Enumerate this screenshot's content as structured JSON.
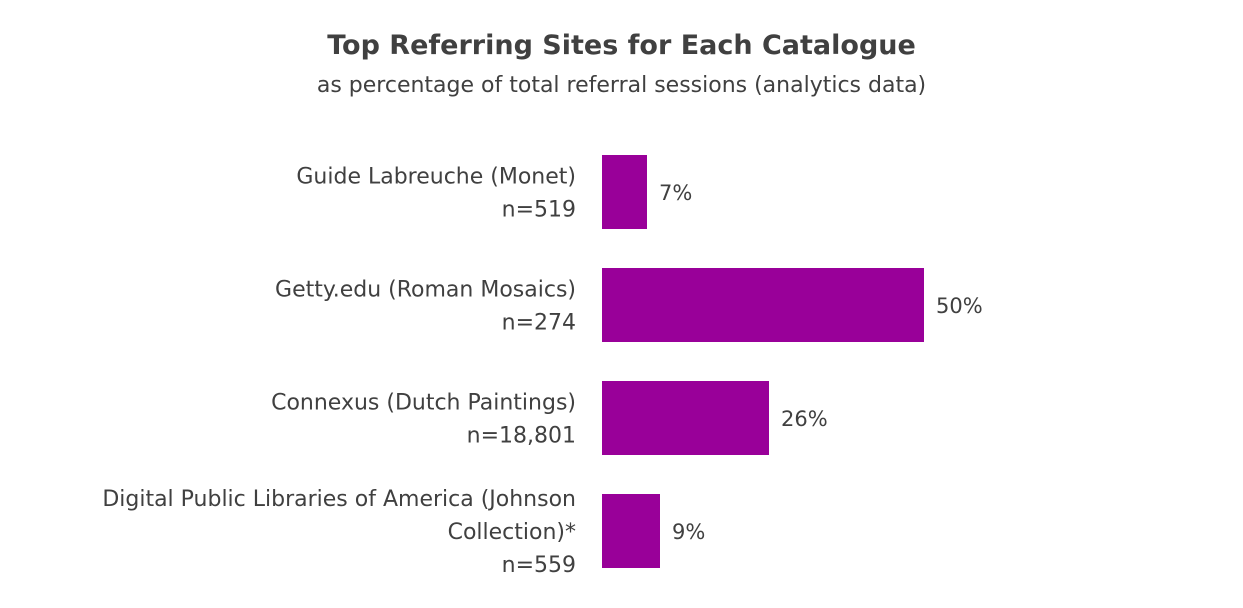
{
  "chart_data": {
    "type": "bar",
    "orientation": "horizontal",
    "title": "Top Referring Sites for Each Catalogue",
    "subtitle": "as percentage of total referral sessions (analytics data)",
    "categories": [
      "Guide Labreuche (Monet)",
      "Getty.edu (Roman Mosaics)",
      "Connexus (Dutch Paintings)",
      "Digital Public Libraries of America (Johnson Collection)*"
    ],
    "category_lines": [
      [
        "Guide Labreuche (Monet)"
      ],
      [
        "Getty.edu (Roman Mosaics)"
      ],
      [
        "Connexus (Dutch Paintings)"
      ],
      [
        "Digital Public Libraries of America (Johnson",
        "Collection)*"
      ]
    ],
    "sample_sizes": [
      "n=519",
      "n=274",
      "n=18,801",
      "n=559"
    ],
    "values": [
      7,
      50,
      26,
      9
    ],
    "value_labels": [
      "7%",
      "50%",
      "26%",
      "9%"
    ],
    "xlim": [
      0,
      50
    ],
    "grid": false,
    "legend": "none",
    "bar_color": "#990099",
    "text_color": "#404040"
  }
}
